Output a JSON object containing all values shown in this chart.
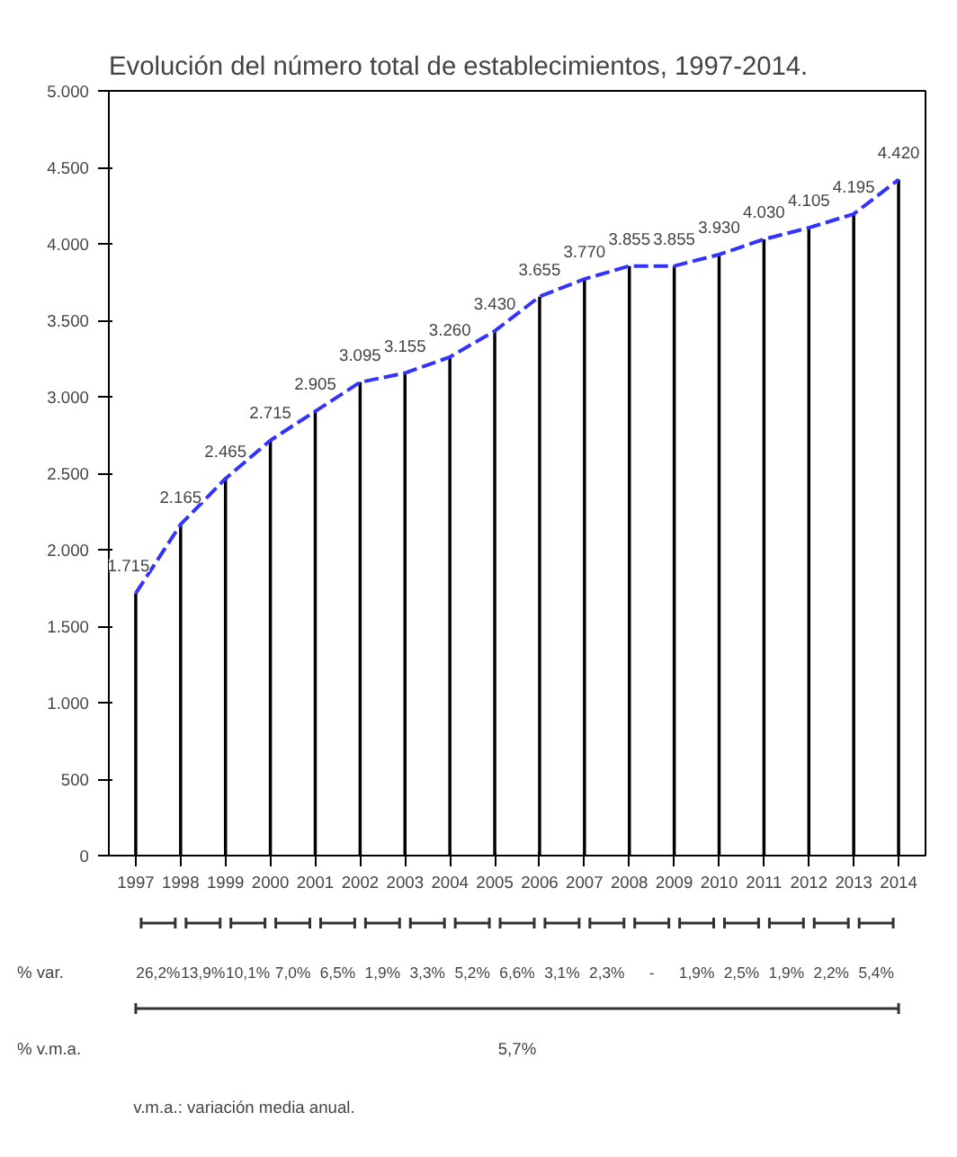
{
  "chart_data": {
    "type": "line",
    "title": "Evolución del número total de establecimientos, 1997-2014.",
    "categories": [
      "1997",
      "1998",
      "1999",
      "2000",
      "2001",
      "2002",
      "2003",
      "2004",
      "2005",
      "2006",
      "2007",
      "2008",
      "2009",
      "2010",
      "2011",
      "2012",
      "2013",
      "2014"
    ],
    "series": [
      {
        "type": "bar",
        "color": "#000000",
        "values": [
          1715,
          2165,
          2465,
          2715,
          2905,
          3095,
          3155,
          3260,
          3430,
          3655,
          3770,
          3855,
          3855,
          3930,
          4030,
          4105,
          4195,
          4420
        ]
      },
      {
        "color": "#3333ff",
        "line_style": "dashed",
        "values": [
          1715,
          2165,
          2465,
          2715,
          2905,
          3095,
          3155,
          3260,
          3430,
          3655,
          3770,
          3855,
          3855,
          3930,
          4030,
          4105,
          4195,
          4420
        ],
        "value_labels": [
          "1.715",
          "2.165",
          "2.465",
          "2.715",
          "2.905",
          "3.095",
          "3.155",
          "3.260",
          "3.430",
          "3.655",
          "3.770",
          "3.855",
          "3.855",
          "3.930",
          "4.030",
          "4.105",
          "4.195",
          "4.420"
        ]
      }
    ],
    "ylim": [
      0,
      5000
    ],
    "yticks": [
      {
        "value": 0,
        "label": "0"
      },
      {
        "value": 500,
        "label": "500"
      },
      {
        "value": 1000,
        "label": "1.000"
      },
      {
        "value": 1500,
        "label": "1.500"
      },
      {
        "value": 2000,
        "label": "2.000"
      },
      {
        "value": 2500,
        "label": "2.500"
      },
      {
        "value": 3000,
        "label": "3.000"
      },
      {
        "value": 3500,
        "label": "3.500"
      },
      {
        "value": 4000,
        "label": "4.000"
      },
      {
        "value": 4500,
        "label": "4.500"
      },
      {
        "value": 5000,
        "label": "5.000"
      }
    ],
    "annotations": [
      "% var.",
      "26,2%",
      "13,9%",
      "10,1%",
      "7,0%",
      "6,5%",
      "1,9%",
      "3,3%",
      "5,2%",
      "6,6%",
      "3,1%",
      "2,3%",
      "-",
      "1,9%",
      "2,5%",
      "1,9%",
      "2,2%",
      "5,4%",
      "% v.m.a.",
      "5,7%",
      "v.m.a.: variación media anual."
    ]
  }
}
